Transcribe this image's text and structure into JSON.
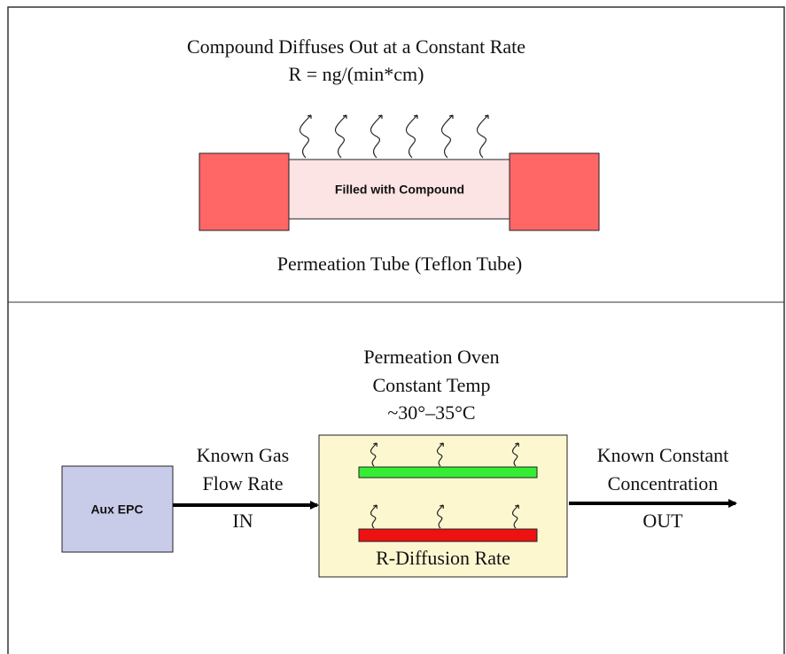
{
  "top": {
    "title": [
      "Compound Diffuses Out at a Constant Rate",
      "R = ng/(min*cm)"
    ],
    "tube_label": "Filled with Compound",
    "caption": "Permeation Tube (Teflon Tube)"
  },
  "bottom": {
    "oven_title": [
      "Permeation Oven",
      "Constant Temp",
      "~30°–35°C"
    ],
    "source": "Aux EPC",
    "inlet": [
      "Known Gas",
      "Flow Rate",
      "IN"
    ],
    "outlet": [
      "Known Constant",
      "Concentration",
      "OUT"
    ],
    "oven_label": "R-Diffusion Rate"
  }
}
